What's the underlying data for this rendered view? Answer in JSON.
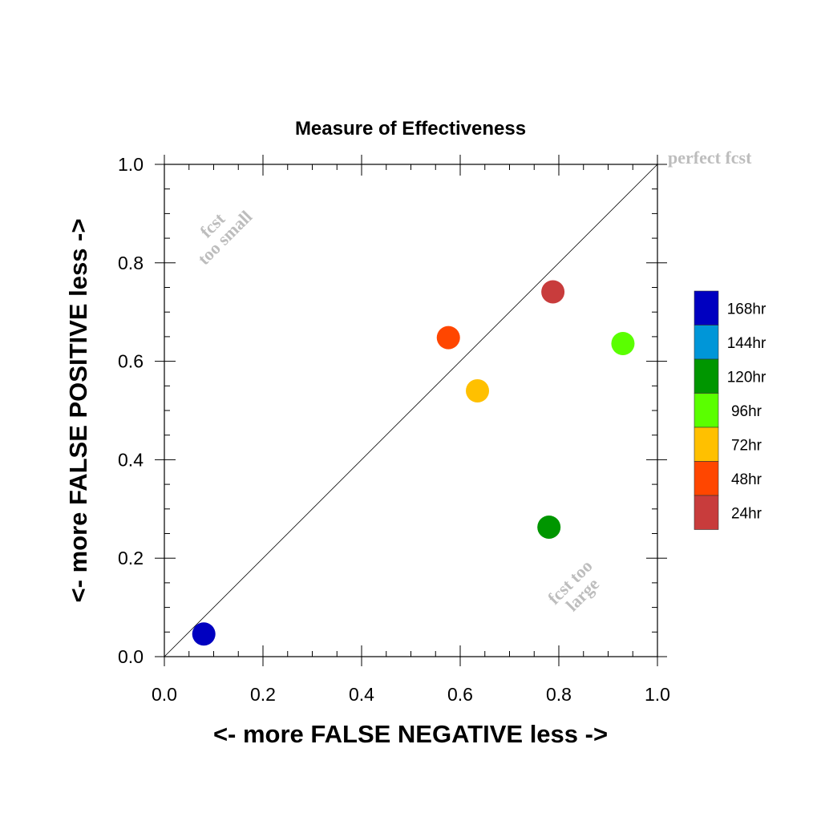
{
  "chart_data": {
    "type": "scatter",
    "title": "Measure of Effectiveness",
    "xlabel": "<- more   FALSE NEGATIVE   less ->",
    "ylabel": "<- more   FALSE POSITIVE   less ->",
    "xlim": [
      0.0,
      1.0
    ],
    "ylim": [
      0.0,
      1.0
    ],
    "x_ticks": [
      "0.0",
      "0.2",
      "0.4",
      "0.6",
      "0.8",
      "1.0"
    ],
    "y_ticks": [
      "0.0",
      "0.2",
      "0.4",
      "0.6",
      "0.8",
      "1.0"
    ],
    "grid": false,
    "diagonal_line": true,
    "annotations": {
      "perfect": "perfect fcst",
      "too_small_1": "fcst",
      "too_small_2": "too small",
      "too_large_1": "fcst too",
      "too_large_2": "large"
    },
    "legend_position": "right",
    "series": [
      {
        "name": "168hr",
        "color": "#0000c0",
        "x": 0.08,
        "y": 0.046
      },
      {
        "name": "144hr",
        "color": "#0096d8",
        "x": null,
        "y": null
      },
      {
        "name": "120hr",
        "color": "#009600",
        "x": 0.78,
        "y": 0.263
      },
      {
        "name": "96hr",
        "color": "#5aff00",
        "x": 0.93,
        "y": 0.636
      },
      {
        "name": "72hr",
        "color": "#ffc000",
        "x": 0.635,
        "y": 0.54
      },
      {
        "name": "48hr",
        "color": "#ff4600",
        "x": 0.576,
        "y": 0.648
      },
      {
        "name": "24hr",
        "color": "#c83c3c",
        "x": 0.788,
        "y": 0.741
      }
    ]
  }
}
